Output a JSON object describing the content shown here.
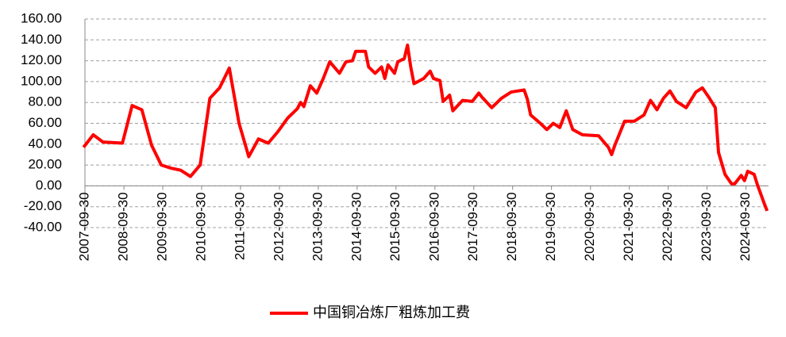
{
  "chart_data": {
    "type": "line",
    "x": [
      "2007-09",
      "2007-12",
      "2008-03",
      "2008-09",
      "2008-12",
      "2009-03",
      "2009-06",
      "2009-09",
      "2009-12",
      "2010-03",
      "2010-06",
      "2010-09",
      "2010-12",
      "2011-03",
      "2011-06",
      "2011-09",
      "2011-12",
      "2012-03",
      "2012-06",
      "2012-09",
      "2012-12",
      "2013-03",
      "2013-04",
      "2013-05",
      "2013-07",
      "2013-09",
      "2013-11",
      "2014-01",
      "2014-04",
      "2014-06",
      "2014-08",
      "2014-09",
      "2014-12",
      "2015-01",
      "2015-03",
      "2015-05",
      "2015-06",
      "2015-07",
      "2015-09",
      "2015-10",
      "2015-12",
      "2016-01",
      "2016-02",
      "2016-03",
      "2016-06",
      "2016-08",
      "2016-09",
      "2016-11",
      "2016-12",
      "2017-02",
      "2017-03",
      "2017-06",
      "2017-09",
      "2017-11",
      "2017-12",
      "2018-03",
      "2018-06",
      "2018-09",
      "2019-01",
      "2019-02",
      "2019-03",
      "2019-06",
      "2019-08",
      "2019-10",
      "2019-12",
      "2020-02",
      "2020-04",
      "2020-07",
      "2020-12",
      "2021-03",
      "2021-04",
      "2021-05",
      "2021-08",
      "2021-11",
      "2022-02",
      "2022-04",
      "2022-06",
      "2022-08",
      "2022-10",
      "2022-12",
      "2023-03",
      "2023-06",
      "2023-08",
      "2023-10",
      "2023-12",
      "2024-01",
      "2024-03",
      "2024-05",
      "2024-06",
      "2024-08",
      "2024-09",
      "2024-10",
      "2024-12",
      "2025-01",
      "2025-03",
      "2025-04"
    ],
    "series": [
      {
        "name": "中国铜冶炼厂粗炼加工费",
        "color": "#ff0000",
        "values": [
          37,
          49,
          42,
          41,
          77,
          73,
          39,
          20,
          17,
          15,
          9,
          20,
          84,
          94,
          113,
          60,
          28,
          45,
          41,
          52,
          65,
          74,
          80,
          76,
          96,
          89,
          103,
          119,
          108,
          119,
          120,
          129,
          129,
          114,
          108,
          114,
          103,
          116,
          108,
          119,
          122,
          135,
          114,
          98,
          103,
          110,
          103,
          101,
          81,
          87,
          72,
          82,
          81,
          89,
          85,
          75,
          84,
          90,
          92,
          83,
          68,
          60,
          54,
          60,
          56,
          72,
          54,
          49,
          48,
          37,
          30,
          39,
          62,
          62,
          68,
          82,
          73,
          84,
          91,
          81,
          75,
          90,
          94,
          85,
          75,
          32,
          11,
          2,
          2,
          10,
          5,
          14,
          11,
          1,
          -16,
          -24
        ]
      }
    ],
    "xlim": [
      "2007-09-30",
      "2025-04-30"
    ],
    "xticks": [
      "2007-09-30",
      "2008-09-30",
      "2009-09-30",
      "2010-09-30",
      "2011-09-30",
      "2012-09-30",
      "2013-09-30",
      "2014-09-30",
      "2015-09-30",
      "2016-09-30",
      "2017-09-30",
      "2018-09-30",
      "2019-09-30",
      "2020-09-30",
      "2021-09-30",
      "2022-09-30",
      "2023-09-30",
      "2024-09-30"
    ],
    "ylim": [
      -40,
      160
    ],
    "yticks": [
      {
        "value": -40,
        "label": "-40.00"
      },
      {
        "value": -20,
        "label": "-20.00"
      },
      {
        "value": 0,
        "label": "0.00"
      },
      {
        "value": 20,
        "label": "20.00"
      },
      {
        "value": 40,
        "label": "40.00"
      },
      {
        "value": 60,
        "label": "60.00"
      },
      {
        "value": 80,
        "label": "80.00"
      },
      {
        "value": 100,
        "label": "100.00"
      },
      {
        "value": 120,
        "label": "120.00"
      },
      {
        "value": 140,
        "label": "140.00"
      },
      {
        "value": 160,
        "label": "160.00"
      }
    ],
    "grid": true,
    "legend": "bottom"
  }
}
